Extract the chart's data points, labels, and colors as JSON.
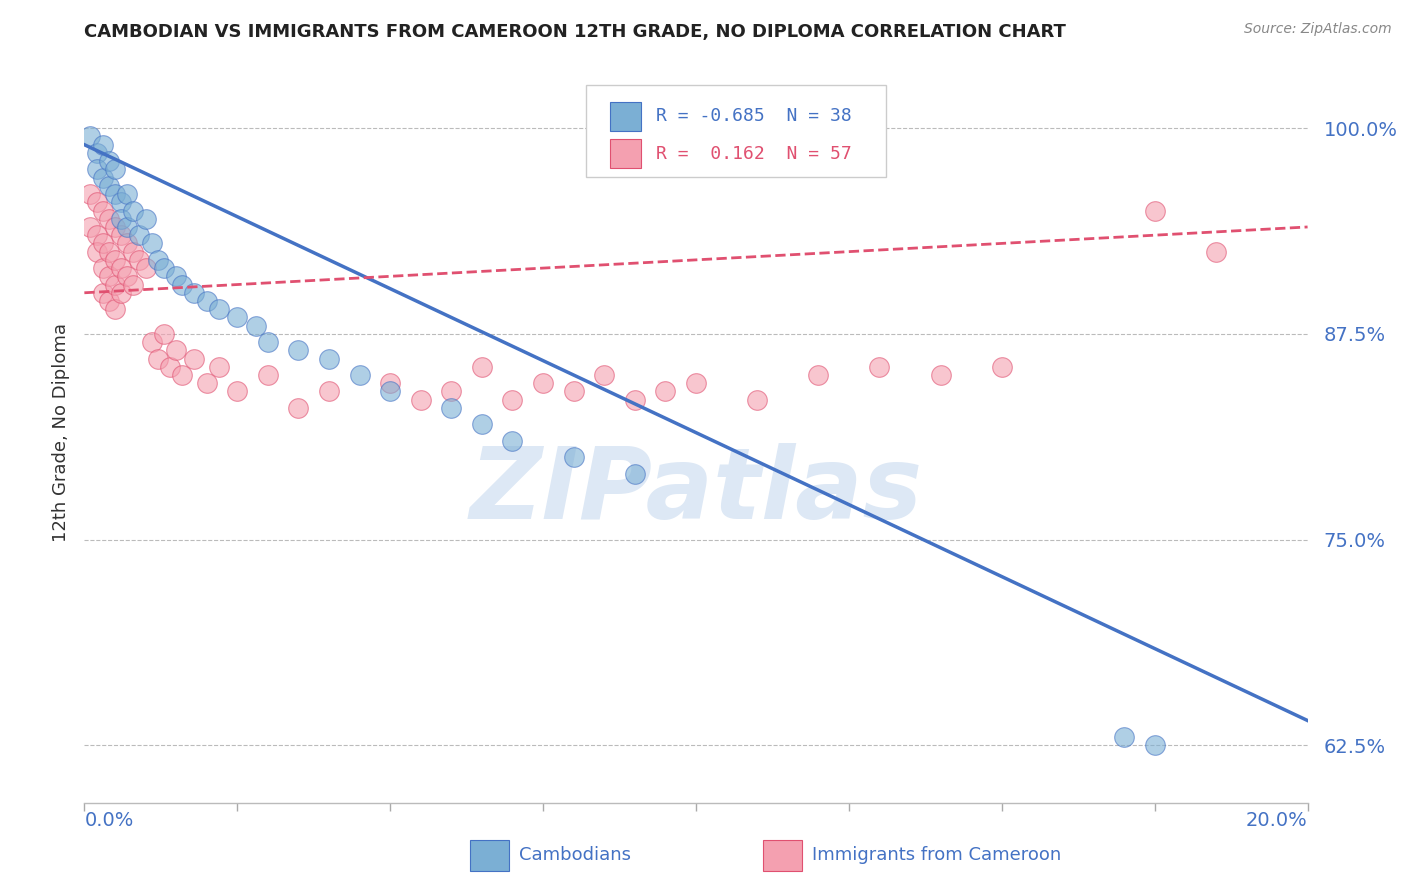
{
  "title": "CAMBODIAN VS IMMIGRANTS FROM CAMEROON 12TH GRADE, NO DIPLOMA CORRELATION CHART",
  "source": "Source: ZipAtlas.com",
  "ylabel": "12th Grade, No Diploma",
  "ytick_labels": [
    "62.5%",
    "75.0%",
    "87.5%",
    "100.0%"
  ],
  "ytick_values": [
    0.625,
    0.75,
    0.875,
    1.0
  ],
  "xlim": [
    0.0,
    0.2
  ],
  "ylim": [
    0.59,
    1.04
  ],
  "cambodian_scatter": [
    [
      0.001,
      0.995
    ],
    [
      0.002,
      0.985
    ],
    [
      0.002,
      0.975
    ],
    [
      0.003,
      0.99
    ],
    [
      0.003,
      0.97
    ],
    [
      0.004,
      0.98
    ],
    [
      0.004,
      0.965
    ],
    [
      0.005,
      0.96
    ],
    [
      0.005,
      0.975
    ],
    [
      0.006,
      0.955
    ],
    [
      0.006,
      0.945
    ],
    [
      0.007,
      0.96
    ],
    [
      0.007,
      0.94
    ],
    [
      0.008,
      0.95
    ],
    [
      0.009,
      0.935
    ],
    [
      0.01,
      0.945
    ],
    [
      0.011,
      0.93
    ],
    [
      0.012,
      0.92
    ],
    [
      0.013,
      0.915
    ],
    [
      0.015,
      0.91
    ],
    [
      0.016,
      0.905
    ],
    [
      0.018,
      0.9
    ],
    [
      0.02,
      0.895
    ],
    [
      0.022,
      0.89
    ],
    [
      0.025,
      0.885
    ],
    [
      0.028,
      0.88
    ],
    [
      0.03,
      0.87
    ],
    [
      0.035,
      0.865
    ],
    [
      0.04,
      0.86
    ],
    [
      0.045,
      0.85
    ],
    [
      0.05,
      0.84
    ],
    [
      0.06,
      0.83
    ],
    [
      0.065,
      0.82
    ],
    [
      0.07,
      0.81
    ],
    [
      0.08,
      0.8
    ],
    [
      0.09,
      0.79
    ],
    [
      0.17,
      0.63
    ],
    [
      0.175,
      0.625
    ]
  ],
  "cameroon_scatter": [
    [
      0.001,
      0.96
    ],
    [
      0.001,
      0.94
    ],
    [
      0.002,
      0.955
    ],
    [
      0.002,
      0.935
    ],
    [
      0.002,
      0.925
    ],
    [
      0.003,
      0.95
    ],
    [
      0.003,
      0.93
    ],
    [
      0.003,
      0.915
    ],
    [
      0.003,
      0.9
    ],
    [
      0.004,
      0.945
    ],
    [
      0.004,
      0.925
    ],
    [
      0.004,
      0.91
    ],
    [
      0.004,
      0.895
    ],
    [
      0.005,
      0.94
    ],
    [
      0.005,
      0.92
    ],
    [
      0.005,
      0.905
    ],
    [
      0.005,
      0.89
    ],
    [
      0.006,
      0.935
    ],
    [
      0.006,
      0.915
    ],
    [
      0.006,
      0.9
    ],
    [
      0.007,
      0.93
    ],
    [
      0.007,
      0.91
    ],
    [
      0.008,
      0.925
    ],
    [
      0.008,
      0.905
    ],
    [
      0.009,
      0.92
    ],
    [
      0.01,
      0.915
    ],
    [
      0.011,
      0.87
    ],
    [
      0.012,
      0.86
    ],
    [
      0.013,
      0.875
    ],
    [
      0.014,
      0.855
    ],
    [
      0.015,
      0.865
    ],
    [
      0.016,
      0.85
    ],
    [
      0.018,
      0.86
    ],
    [
      0.02,
      0.845
    ],
    [
      0.022,
      0.855
    ],
    [
      0.025,
      0.84
    ],
    [
      0.03,
      0.85
    ],
    [
      0.035,
      0.83
    ],
    [
      0.04,
      0.84
    ],
    [
      0.05,
      0.845
    ],
    [
      0.055,
      0.835
    ],
    [
      0.06,
      0.84
    ],
    [
      0.065,
      0.855
    ],
    [
      0.07,
      0.835
    ],
    [
      0.075,
      0.845
    ],
    [
      0.08,
      0.84
    ],
    [
      0.085,
      0.85
    ],
    [
      0.09,
      0.835
    ],
    [
      0.095,
      0.84
    ],
    [
      0.1,
      0.845
    ],
    [
      0.11,
      0.835
    ],
    [
      0.12,
      0.85
    ],
    [
      0.13,
      0.855
    ],
    [
      0.14,
      0.85
    ],
    [
      0.15,
      0.855
    ],
    [
      0.175,
      0.95
    ],
    [
      0.185,
      0.925
    ]
  ],
  "blue_line_x": [
    0.0,
    0.2
  ],
  "blue_line_y": [
    0.99,
    0.64
  ],
  "pink_line_x": [
    0.0,
    0.2
  ],
  "pink_line_y": [
    0.9,
    0.94
  ],
  "blue_color": "#4472C4",
  "pink_color": "#E05070",
  "scatter_blue_facecolor": "#7BAFD4",
  "scatter_pink_facecolor": "#F4A0B0",
  "background_color": "#ffffff",
  "axis_label_color": "#4472C4",
  "title_color": "#222222",
  "watermark_color": "#dde8f5",
  "title_fontsize": 13,
  "legend_R1": "R = -0.685",
  "legend_N1": "N = 38",
  "legend_R2": "R =  0.162",
  "legend_N2": "N = 57"
}
